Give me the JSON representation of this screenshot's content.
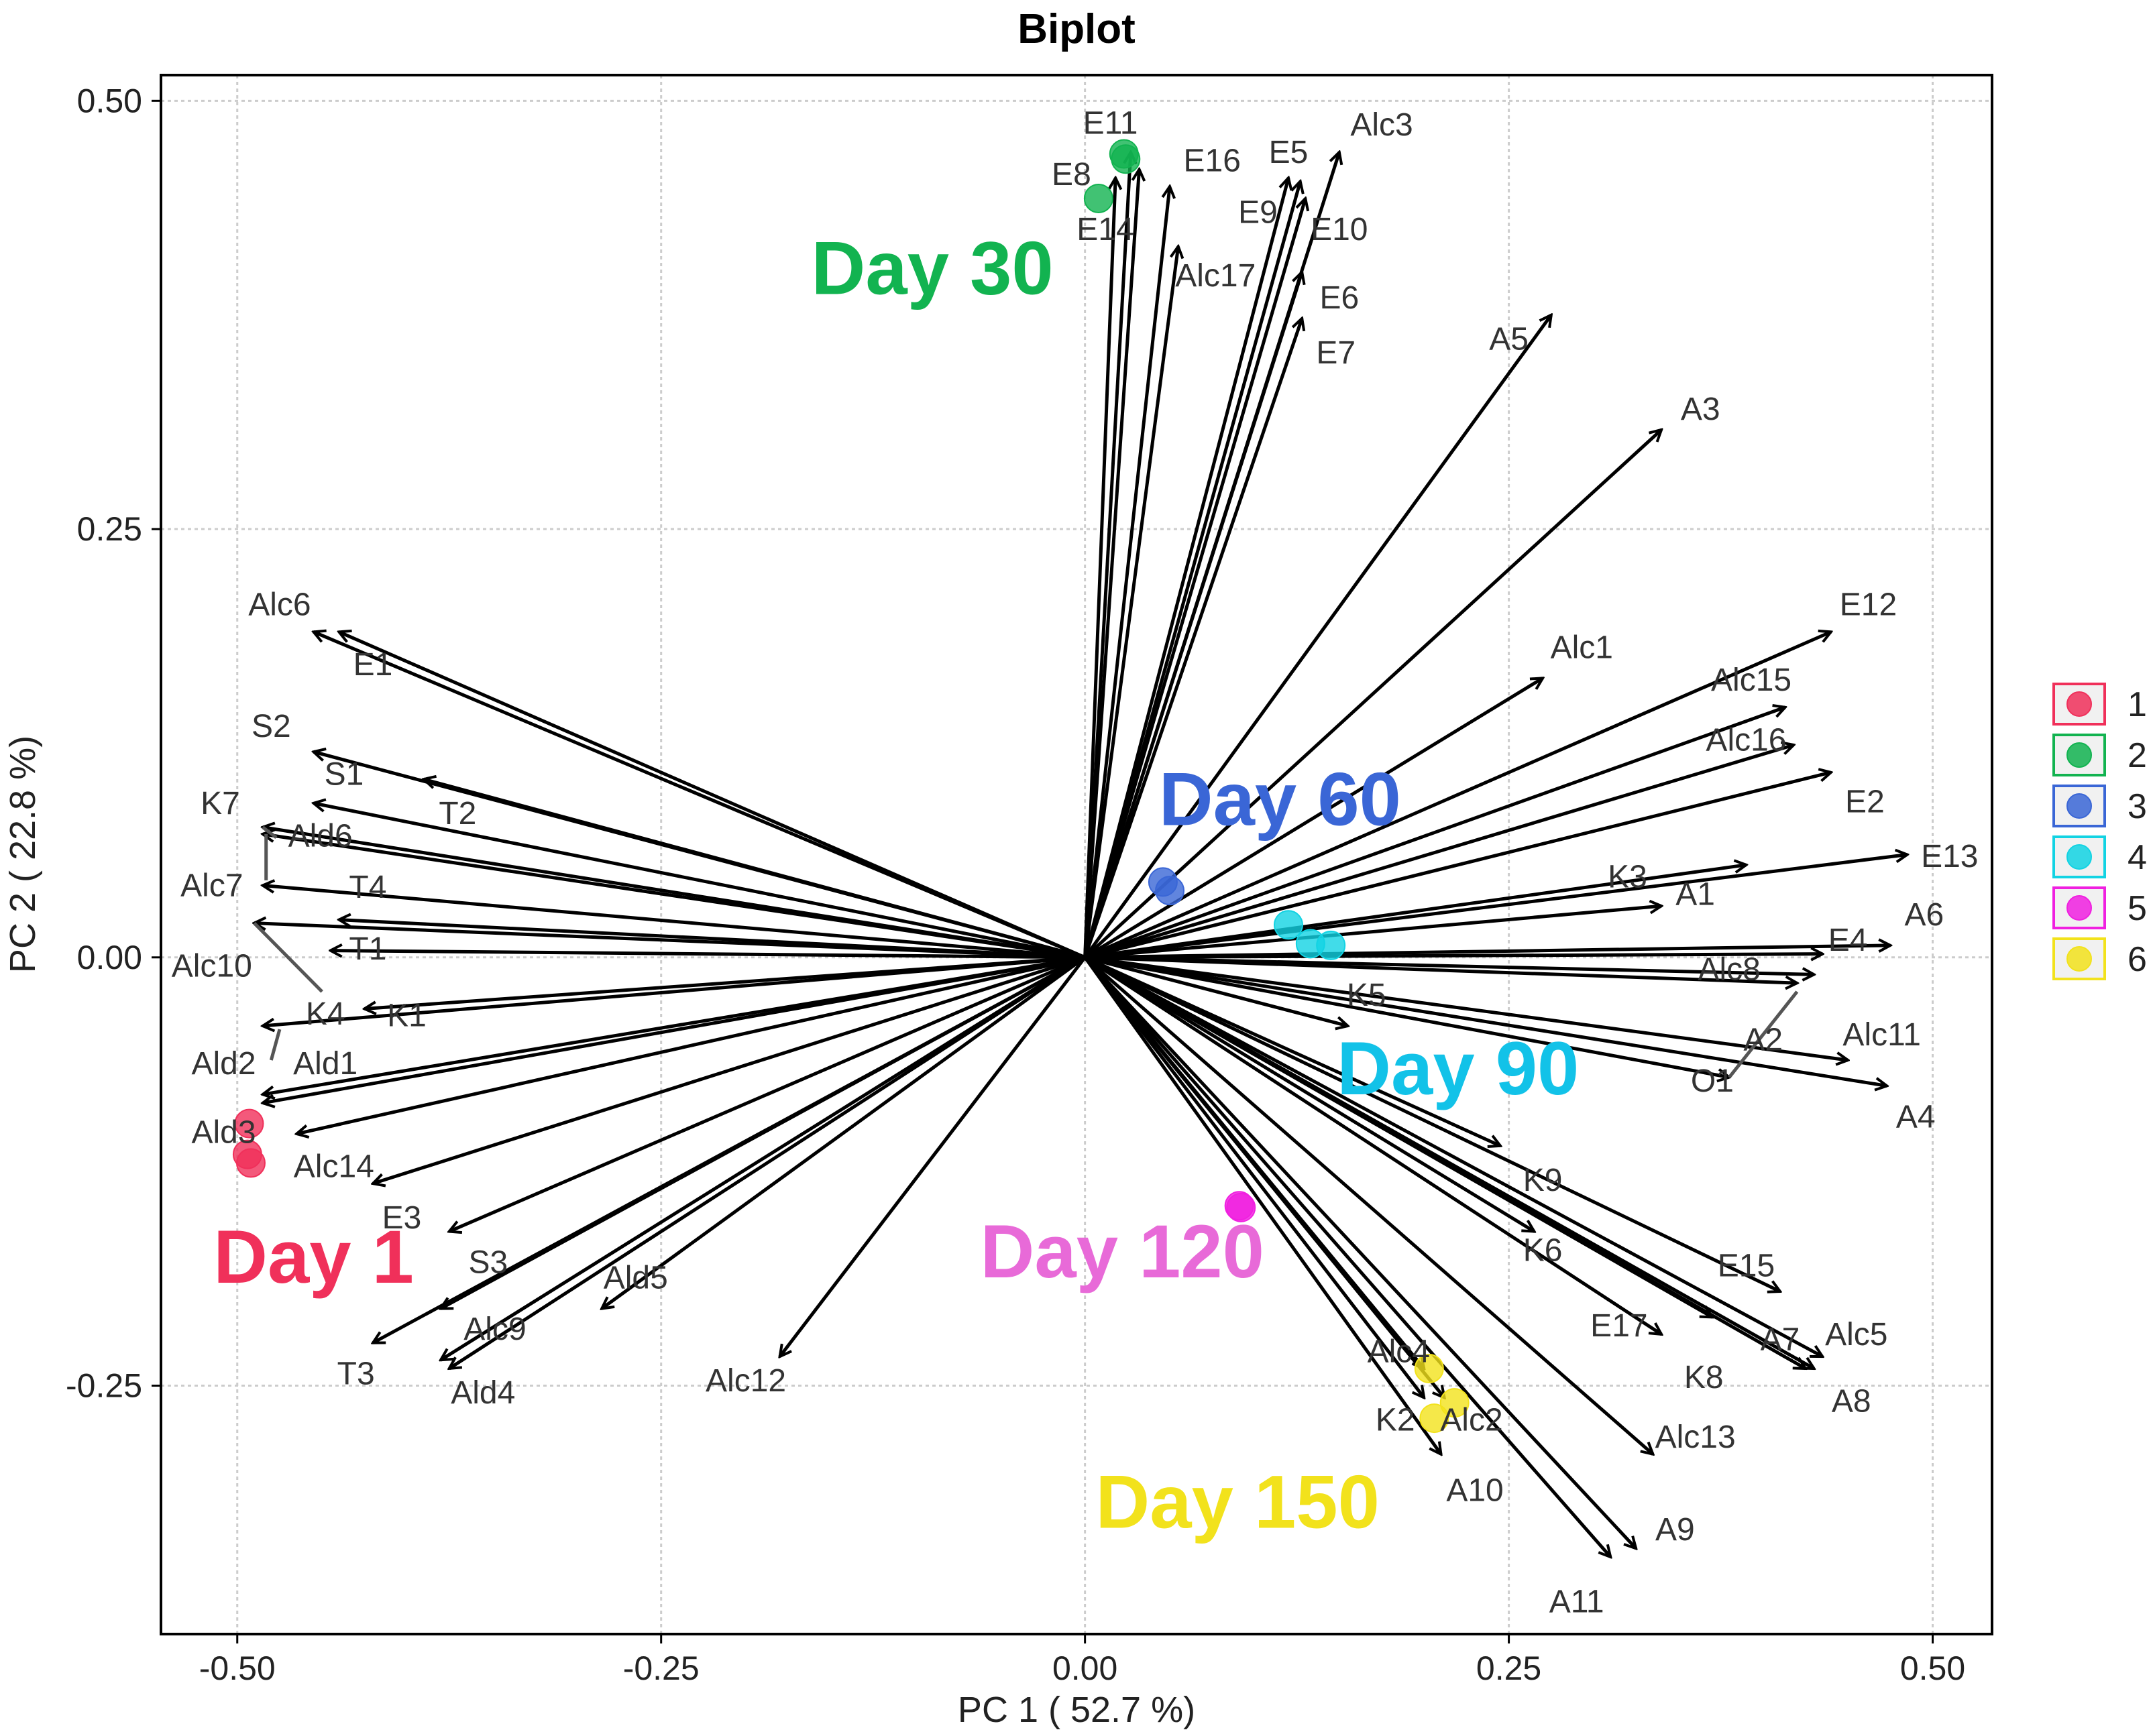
{
  "chart_data": {
    "type": "scatter",
    "title": "Biplot",
    "xlabel": "PC 1 ( 52.7 %)",
    "ylabel": "PC 2 ( 22.8 %)",
    "xlim": [
      -0.545,
      0.535
    ],
    "ylim": [
      -0.395,
      0.515
    ],
    "x_ticks": [
      -0.5,
      -0.25,
      0.0,
      0.25,
      0.5
    ],
    "x_tick_labels": [
      "-0.50",
      "-0.25",
      "0.00",
      "0.25",
      "0.50"
    ],
    "y_ticks": [
      -0.25,
      0.0,
      0.25,
      0.5
    ],
    "y_tick_labels": [
      "-0.25",
      "0.00",
      "0.25",
      "0.50"
    ],
    "grid": true,
    "legend_position": "right",
    "legend": [
      {
        "label": "1",
        "color": "#F0305A"
      },
      {
        "label": "2",
        "color": "#12B350"
      },
      {
        "label": "3",
        "color": "#3A66D6"
      },
      {
        "label": "4",
        "color": "#12D3E3"
      },
      {
        "label": "5",
        "color": "#F020E0"
      },
      {
        "label": "6",
        "color": "#F2E21C"
      }
    ],
    "group_labels": [
      {
        "text": "Day 1",
        "color": "#F0305A",
        "x": -0.455,
        "y": -0.175
      },
      {
        "text": "Day 30",
        "color": "#12B350",
        "x": -0.09,
        "y": 0.402
      },
      {
        "text": "Day 60",
        "color": "#3A66D6",
        "x": 0.115,
        "y": 0.092
      },
      {
        "text": "Day 90",
        "color": "#12C2E8",
        "x": 0.22,
        "y": -0.065
      },
      {
        "text": "Day 120",
        "color": "#E86AD8",
        "x": 0.022,
        "y": -0.172
      },
      {
        "text": "Day 150",
        "color": "#F2E21C",
        "x": 0.09,
        "y": -0.318
      }
    ],
    "points": [
      {
        "group": "1",
        "x": -0.493,
        "y": -0.097
      },
      {
        "group": "1",
        "x": -0.494,
        "y": -0.115
      },
      {
        "group": "1",
        "x": -0.492,
        "y": -0.12
      },
      {
        "group": "2",
        "x": 0.024,
        "y": 0.466
      },
      {
        "group": "2",
        "x": 0.023,
        "y": 0.469
      },
      {
        "group": "2",
        "x": 0.008,
        "y": 0.443
      },
      {
        "group": "3",
        "x": 0.046,
        "y": 0.044
      },
      {
        "group": "3",
        "x": 0.05,
        "y": 0.039
      },
      {
        "group": "4",
        "x": 0.12,
        "y": 0.019
      },
      {
        "group": "4",
        "x": 0.133,
        "y": 0.008
      },
      {
        "group": "4",
        "x": 0.145,
        "y": 0.007
      },
      {
        "group": "5",
        "x": 0.092,
        "y": -0.146
      },
      {
        "group": "5",
        "x": 0.091,
        "y": -0.145
      },
      {
        "group": "6",
        "x": 0.218,
        "y": -0.26
      },
      {
        "group": "6",
        "x": 0.203,
        "y": -0.24
      },
      {
        "group": "6",
        "x": 0.206,
        "y": -0.269
      }
    ],
    "vectors": [
      {
        "name": "Alc6",
        "x": -0.455,
        "y": 0.19,
        "lx": -0.475,
        "ly": 0.206
      },
      {
        "name": "E1",
        "x": -0.44,
        "y": 0.19,
        "lx": -0.42,
        "ly": 0.171
      },
      {
        "name": "S2",
        "x": -0.455,
        "y": 0.12,
        "lx": -0.48,
        "ly": 0.135
      },
      {
        "name": "S1",
        "x": -0.455,
        "y": 0.09,
        "lx": -0.437,
        "ly": 0.107
      },
      {
        "name": "T2",
        "x": -0.39,
        "y": 0.104,
        "lx": -0.37,
        "ly": 0.084
      },
      {
        "name": "K7",
        "x": -0.485,
        "y": 0.076,
        "lx": -0.51,
        "ly": 0.09
      },
      {
        "name": "Ald6",
        "x": -0.485,
        "y": 0.072,
        "lx": -0.451,
        "ly": 0.071
      },
      {
        "name": "Alc7",
        "x": -0.485,
        "y": 0.042,
        "lx": -0.515,
        "ly": 0.042
      },
      {
        "name": "T4",
        "x": -0.44,
        "y": 0.022,
        "lx": -0.423,
        "ly": 0.041
      },
      {
        "name": "Alc10",
        "x": -0.49,
        "y": 0.02,
        "lx": -0.515,
        "ly": -0.005
      },
      {
        "name": "T1",
        "x": -0.445,
        "y": 0.004,
        "lx": -0.423,
        "ly": 0.005
      },
      {
        "name": "K4",
        "x": -0.485,
        "y": -0.04,
        "lx": -0.448,
        "ly": -0.033
      },
      {
        "name": "K1",
        "x": -0.425,
        "y": -0.03,
        "lx": -0.4,
        "ly": -0.034
      },
      {
        "name": "Ald2",
        "x": -0.485,
        "y": -0.085,
        "lx": -0.508,
        "ly": -0.062
      },
      {
        "name": "Ald1",
        "x": -0.485,
        "y": -0.08,
        "lx": -0.448,
        "ly": -0.062
      },
      {
        "name": "Ald3",
        "x": -0.465,
        "y": -0.103,
        "lx": -0.508,
        "ly": -0.102
      },
      {
        "name": "Alc14",
        "x": -0.42,
        "y": -0.132,
        "lx": -0.443,
        "ly": -0.122
      },
      {
        "name": "E3",
        "x": -0.375,
        "y": -0.16,
        "lx": -0.403,
        "ly": -0.152
      },
      {
        "name": "S3",
        "x": -0.38,
        "y": -0.205,
        "lx": -0.352,
        "ly": -0.178
      },
      {
        "name": "Ald5",
        "x": -0.285,
        "y": -0.205,
        "lx": -0.265,
        "ly": -0.187
      },
      {
        "name": "Alc9",
        "x": -0.38,
        "y": -0.235,
        "lx": -0.348,
        "ly": -0.217
      },
      {
        "name": "T3",
        "x": -0.42,
        "y": -0.225,
        "lx": -0.43,
        "ly": -0.243
      },
      {
        "name": "Ald4",
        "x": -0.375,
        "y": -0.24,
        "lx": -0.355,
        "ly": -0.254
      },
      {
        "name": "Alc12",
        "x": -0.18,
        "y": -0.233,
        "lx": -0.2,
        "ly": -0.247
      },
      {
        "name": "E11",
        "x": 0.027,
        "y": 0.47,
        "lx": 0.015,
        "ly": 0.487
      },
      {
        "name": "E8",
        "x": 0.018,
        "y": 0.455,
        "lx": -0.008,
        "ly": 0.457
      },
      {
        "name": "E14",
        "x": 0.032,
        "y": 0.46,
        "lx": 0.012,
        "ly": 0.425
      },
      {
        "name": "E16",
        "x": 0.05,
        "y": 0.45,
        "lx": 0.075,
        "ly": 0.465
      },
      {
        "name": "E5",
        "x": 0.12,
        "y": 0.455,
        "lx": 0.12,
        "ly": 0.47
      },
      {
        "name": "Alc3",
        "x": 0.15,
        "y": 0.47,
        "lx": 0.175,
        "ly": 0.486
      },
      {
        "name": "E9",
        "x": 0.127,
        "y": 0.453,
        "lx": 0.102,
        "ly": 0.435
      },
      {
        "name": "E10",
        "x": 0.13,
        "y": 0.443,
        "lx": 0.15,
        "ly": 0.425
      },
      {
        "name": "Alc17",
        "x": 0.055,
        "y": 0.415,
        "lx": 0.077,
        "ly": 0.398
      },
      {
        "name": "E6",
        "x": 0.128,
        "y": 0.4,
        "lx": 0.15,
        "ly": 0.385
      },
      {
        "name": "E7",
        "x": 0.128,
        "y": 0.373,
        "lx": 0.148,
        "ly": 0.353
      },
      {
        "name": "A5",
        "x": 0.275,
        "y": 0.375,
        "lx": 0.25,
        "ly": 0.361
      },
      {
        "name": "A3",
        "x": 0.34,
        "y": 0.308,
        "lx": 0.363,
        "ly": 0.32
      },
      {
        "name": "E12",
        "x": 0.44,
        "y": 0.19,
        "lx": 0.462,
        "ly": 0.206
      },
      {
        "name": "Alc1",
        "x": 0.27,
        "y": 0.163,
        "lx": 0.293,
        "ly": 0.181
      },
      {
        "name": "Alc15",
        "x": 0.413,
        "y": 0.146,
        "lx": 0.393,
        "ly": 0.162
      },
      {
        "name": "Alc16",
        "x": 0.418,
        "y": 0.124,
        "lx": 0.39,
        "ly": 0.127
      },
      {
        "name": "E2",
        "x": 0.44,
        "y": 0.108,
        "lx": 0.46,
        "ly": 0.091
      },
      {
        "name": "E13",
        "x": 0.485,
        "y": 0.06,
        "lx": 0.51,
        "ly": 0.059
      },
      {
        "name": "K3",
        "x": 0.39,
        "y": 0.054,
        "lx": 0.32,
        "ly": 0.047
      },
      {
        "name": "A1",
        "x": 0.34,
        "y": 0.03,
        "lx": 0.36,
        "ly": 0.037
      },
      {
        "name": "A6",
        "x": 0.475,
        "y": 0.007,
        "lx": 0.495,
        "ly": 0.025
      },
      {
        "name": "E4",
        "x": 0.435,
        "y": 0.002,
        "lx": 0.45,
        "ly": 0.01
      },
      {
        "name": "Alc8",
        "x": 0.43,
        "y": -0.01,
        "lx": 0.38,
        "ly": -0.007
      },
      {
        "name": "K5",
        "x": 0.155,
        "y": -0.04,
        "lx": 0.166,
        "ly": -0.022
      },
      {
        "name": "A2",
        "x": 0.42,
        "y": -0.015,
        "lx": 0.4,
        "ly": -0.048
      },
      {
        "name": "Alc11",
        "x": 0.45,
        "y": -0.06,
        "lx": 0.47,
        "ly": -0.045
      },
      {
        "name": "O1",
        "x": 0.38,
        "y": -0.07,
        "lx": 0.37,
        "ly": -0.072
      },
      {
        "name": "A4",
        "x": 0.473,
        "y": -0.075,
        "lx": 0.49,
        "ly": -0.093
      },
      {
        "name": "K9",
        "x": 0.245,
        "y": -0.11,
        "lx": 0.27,
        "ly": -0.13
      },
      {
        "name": "K6",
        "x": 0.265,
        "y": -0.16,
        "lx": 0.27,
        "ly": -0.171
      },
      {
        "name": "E15",
        "x": 0.41,
        "y": -0.195,
        "lx": 0.39,
        "ly": -0.18
      },
      {
        "name": "E17",
        "x": 0.34,
        "y": -0.22,
        "lx": 0.315,
        "ly": -0.215
      },
      {
        "name": "A7",
        "x": 0.435,
        "y": -0.233,
        "lx": 0.41,
        "ly": -0.223
      },
      {
        "name": "Alc5",
        "x": 0.43,
        "y": -0.24,
        "lx": 0.455,
        "ly": -0.22
      },
      {
        "name": "K8",
        "x": 0.37,
        "y": -0.21,
        "lx": 0.365,
        "ly": -0.245
      },
      {
        "name": "A8",
        "x": 0.425,
        "y": -0.24,
        "lx": 0.452,
        "ly": -0.259
      },
      {
        "name": "Alc4",
        "x": 0.2,
        "y": -0.24,
        "lx": 0.185,
        "ly": -0.23
      },
      {
        "name": "K2",
        "x": 0.2,
        "y": -0.257,
        "lx": 0.183,
        "ly": -0.27
      },
      {
        "name": "Alc2",
        "x": 0.212,
        "y": -0.257,
        "lx": 0.228,
        "ly": -0.27
      },
      {
        "name": "A10",
        "x": 0.21,
        "y": -0.29,
        "lx": 0.23,
        "ly": -0.311
      },
      {
        "name": "Alc13",
        "x": 0.335,
        "y": -0.29,
        "lx": 0.36,
        "ly": -0.28
      },
      {
        "name": "A9",
        "x": 0.325,
        "y": -0.345,
        "lx": 0.348,
        "ly": -0.334
      },
      {
        "name": "A11",
        "x": 0.31,
        "y": -0.35,
        "lx": 0.29,
        "ly": -0.376
      }
    ],
    "loadings_lines": [
      {
        "x1": -0.485,
        "y1": 0.076,
        "x2": -0.477,
        "y2": 0.07
      },
      {
        "x1": -0.483,
        "y1": 0.072,
        "x2": -0.483,
        "y2": 0.045
      },
      {
        "x1": -0.49,
        "y1": 0.02,
        "x2": -0.45,
        "y2": -0.02
      },
      {
        "x1": -0.48,
        "y1": -0.06,
        "x2": -0.475,
        "y2": -0.042
      },
      {
        "x1": 0.42,
        "y1": -0.02,
        "x2": 0.38,
        "y2": -0.07
      }
    ]
  }
}
